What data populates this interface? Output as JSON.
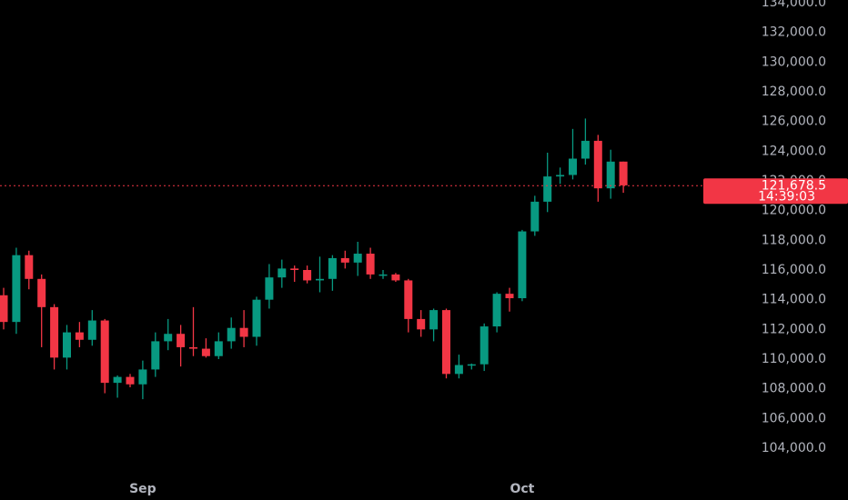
{
  "chart_data": {
    "type": "candlestick",
    "categories": [
      null,
      null,
      null,
      null,
      null,
      null,
      null,
      null,
      null,
      null,
      null,
      "Sep",
      null,
      null,
      null,
      null,
      null,
      null,
      null,
      null,
      null,
      null,
      null,
      null,
      null,
      null,
      null,
      null,
      null,
      null,
      null,
      null,
      null,
      null,
      null,
      null,
      null,
      null,
      null,
      null,
      null,
      "Oct",
      null,
      null,
      null,
      null,
      null,
      null,
      null,
      null
    ],
    "open": [
      114300,
      112500,
      117000,
      115400,
      113500,
      110100,
      111800,
      111300,
      112600,
      108400,
      108800,
      108300,
      109300,
      111200,
      111700,
      110800,
      110700,
      110200,
      111200,
      112100,
      111500,
      114000,
      115500,
      116100,
      116000,
      115300,
      115400,
      116800,
      116500,
      117100,
      115700,
      115700,
      115300,
      112700,
      112000,
      113300,
      109000,
      109600,
      109650,
      112200,
      114400,
      114100,
      118600,
      120600,
      122300,
      122400,
      123500,
      124700,
      121500,
      123300
    ],
    "high": [
      114800,
      117500,
      117300,
      115700,
      113700,
      112300,
      112500,
      113300,
      112700,
      108900,
      109000,
      109900,
      111800,
      112700,
      112300,
      113500,
      111400,
      111800,
      112800,
      113300,
      114200,
      116400,
      116700,
      116300,
      116300,
      116900,
      117000,
      117300,
      117900,
      117500,
      116000,
      115800,
      115400,
      113300,
      113400,
      113400,
      110300,
      109700,
      112400,
      114500,
      114800,
      118700,
      121000,
      123900,
      122900,
      125500,
      126200,
      125100,
      124100,
      123300
    ],
    "low": [
      112000,
      111700,
      114700,
      110800,
      109300,
      109300,
      110800,
      110900,
      107700,
      107400,
      108100,
      107300,
      108800,
      110600,
      109500,
      110200,
      110100,
      110000,
      110700,
      110800,
      110900,
      113400,
      114800,
      115200,
      115100,
      114500,
      114600,
      116100,
      115600,
      115400,
      115400,
      115200,
      111800,
      111500,
      111200,
      108700,
      108700,
      109300,
      109200,
      111800,
      113200,
      113900,
      118300,
      119900,
      121800,
      122100,
      123100,
      120600,
      120800,
      121200
    ],
    "close": [
      112500,
      117000,
      115400,
      113500,
      110100,
      111800,
      111300,
      112600,
      108400,
      108800,
      108300,
      109300,
      111200,
      111700,
      110800,
      110700,
      110200,
      111200,
      112100,
      111500,
      114000,
      115500,
      116100,
      116000,
      115300,
      115400,
      116800,
      116500,
      117100,
      115700,
      115700,
      115300,
      112700,
      112000,
      113300,
      109000,
      109600,
      109650,
      112200,
      114400,
      114100,
      118600,
      120600,
      122300,
      122400,
      123500,
      124700,
      121500,
      123300,
      121700
    ],
    "up_color": "#089981",
    "down_color": "#f23645",
    "ylim": [
      134000,
      104000
    ],
    "yticks": [
      {
        "value": 134000,
        "label": "134,000.0"
      },
      {
        "value": 132000,
        "label": "132,000.0"
      },
      {
        "value": 130000,
        "label": "130,000.0"
      },
      {
        "value": 128000,
        "label": "128,000.0"
      },
      {
        "value": 126000,
        "label": "126,000.0"
      },
      {
        "value": 124000,
        "label": "124,000.0"
      },
      {
        "value": 122000,
        "label": "122,000.0"
      },
      {
        "value": 120000,
        "label": "120,000.0"
      },
      {
        "value": 118000,
        "label": "118,000.0"
      },
      {
        "value": 116000,
        "label": "116,000.0"
      },
      {
        "value": 114000,
        "label": "114,000.0"
      },
      {
        "value": 112000,
        "label": "112,000.0"
      },
      {
        "value": 110000,
        "label": "110,000.0"
      },
      {
        "value": 108000,
        "label": "108,000.0"
      },
      {
        "value": 106000,
        "label": "106,000.0"
      },
      {
        "value": 104000,
        "label": "104,000.0"
      }
    ],
    "last_price": {
      "value": 121678.5,
      "label": "121,678.5"
    },
    "countdown": "14:39:03",
    "grid": false
  }
}
